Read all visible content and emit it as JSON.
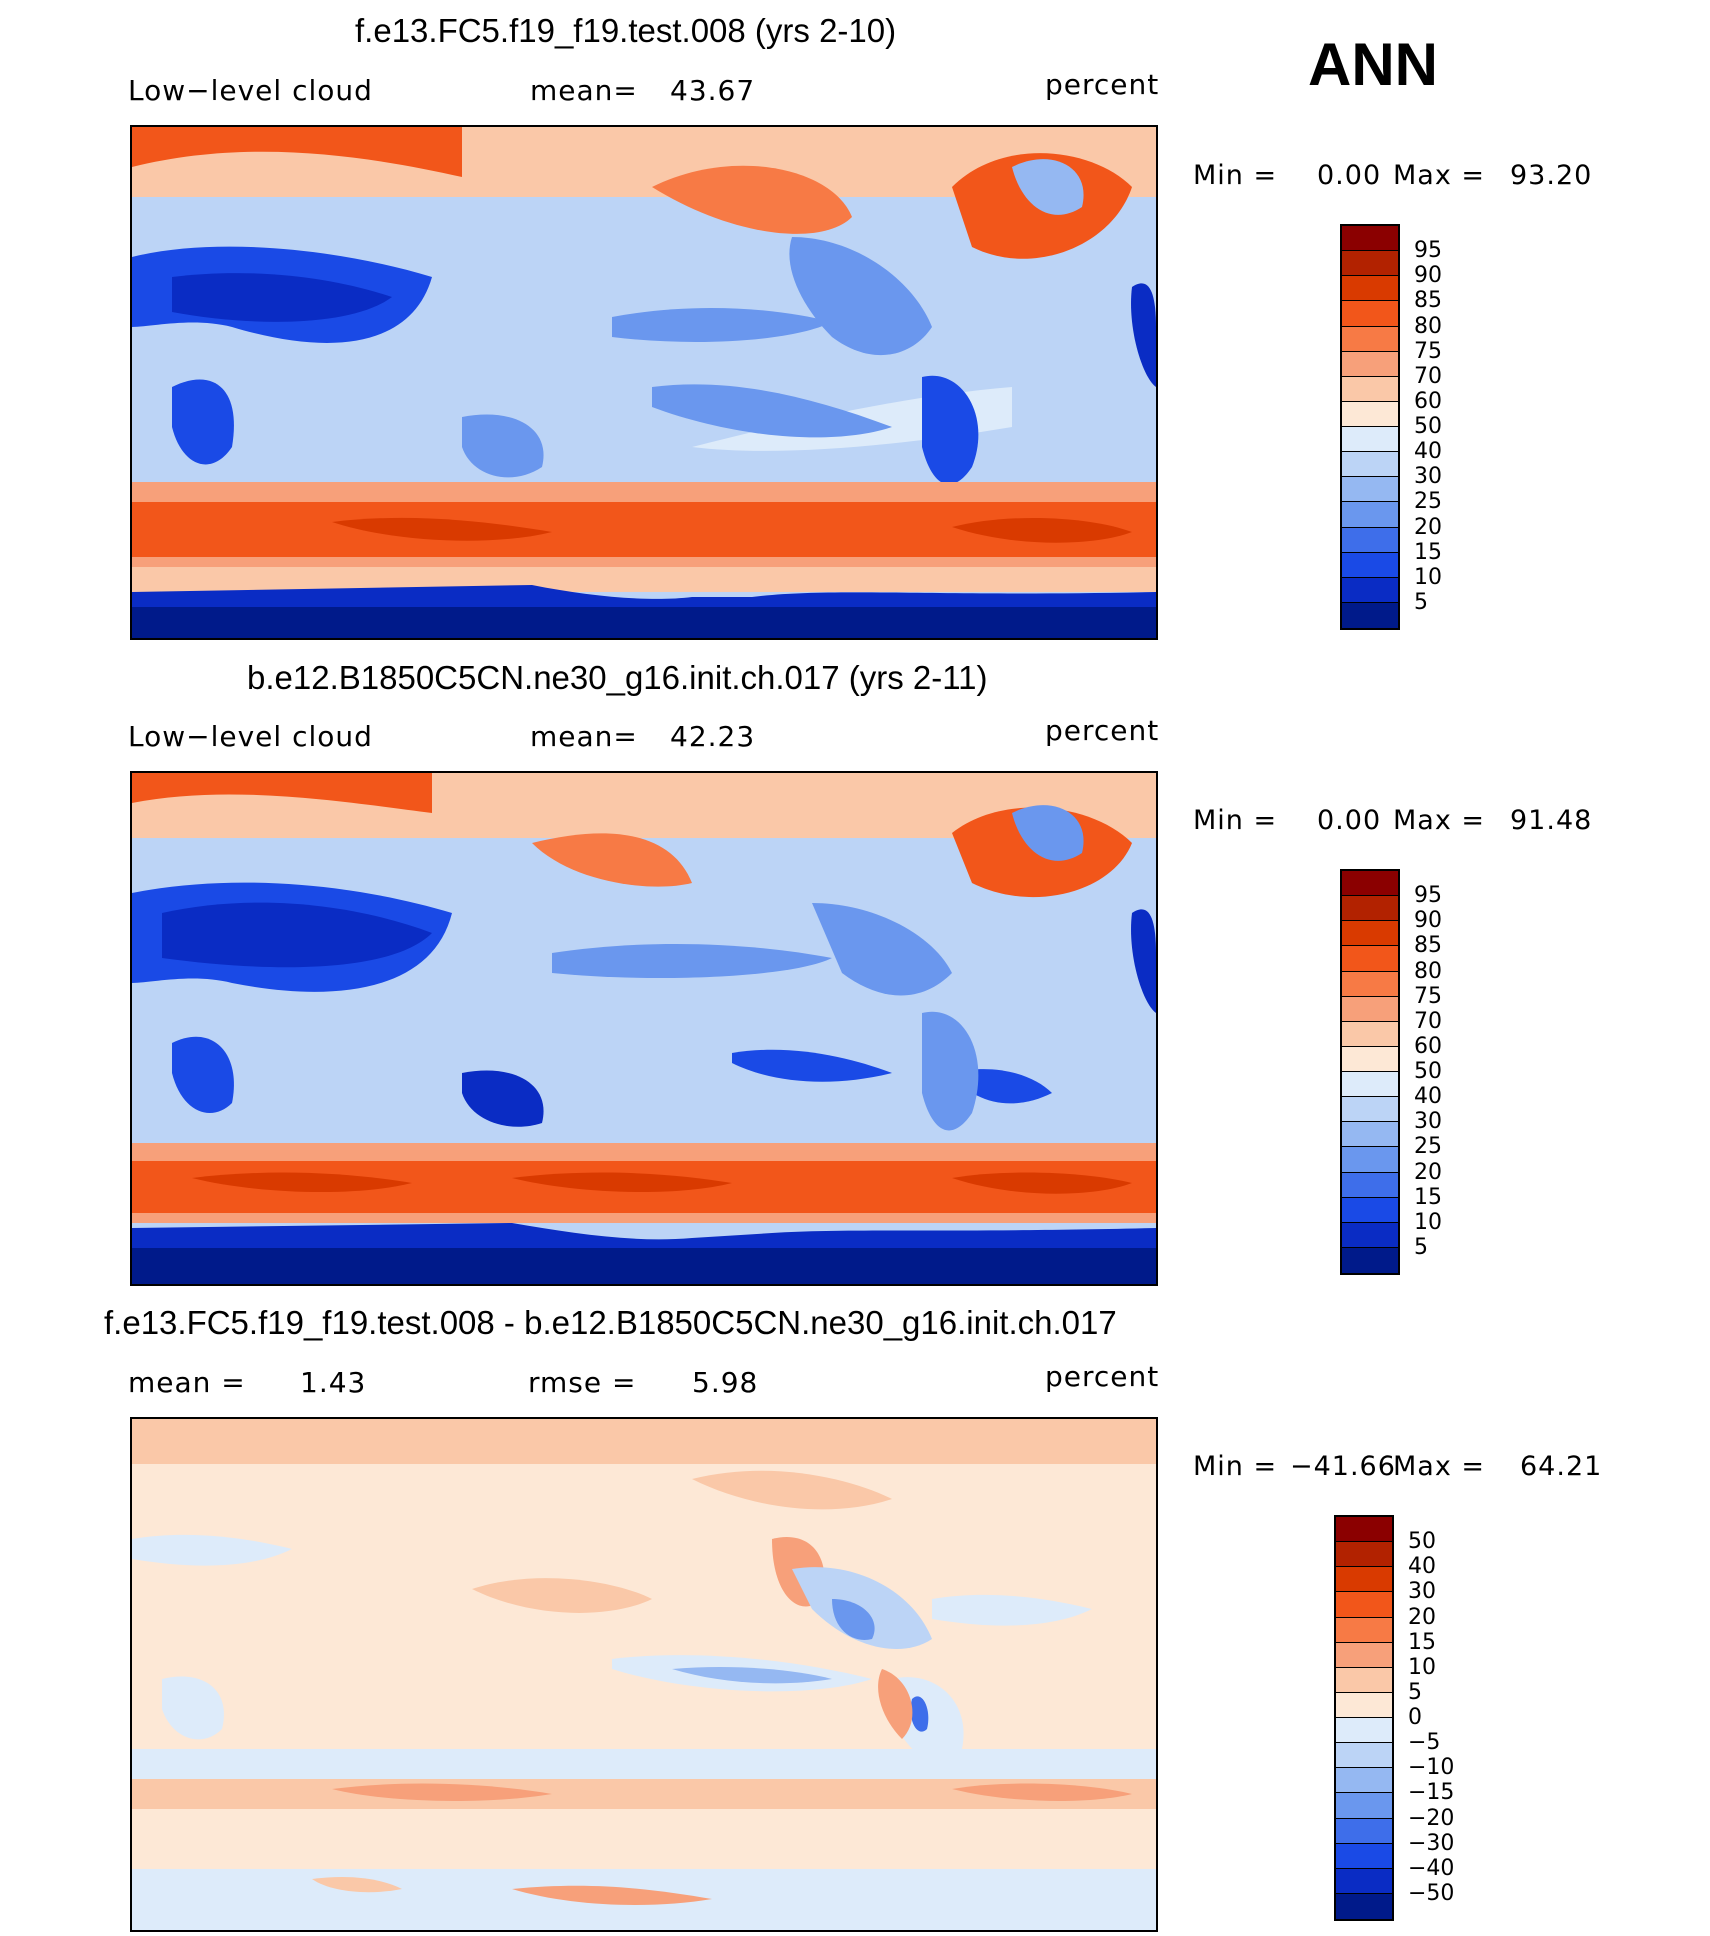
{
  "season": "ANN",
  "panels": [
    {
      "title": "f.e13.FC5.f19_f19.test.008 (yrs 2-10)",
      "left_label": "Low−level  cloud",
      "center_label": "mean=",
      "center_value": "43.67",
      "right_label": "percent",
      "min_label": "Min  =",
      "min_value": "0.00",
      "max_label": "Max  =",
      "max_value": "93.20",
      "colorbar": {
        "colors": [
          "#8B0000",
          "#B22200",
          "#D93A00",
          "#F2561A",
          "#F77A45",
          "#F7A07A",
          "#FAC8A8",
          "#FDE8D6",
          "#DDEBFA",
          "#BCD4F6",
          "#95B8F2",
          "#6A97EE",
          "#3E6EEA",
          "#1A4AE6",
          "#0A2CC4",
          "#001A8A"
        ],
        "labels": [
          "95",
          "90",
          "85",
          "80",
          "75",
          "70",
          "60",
          "50",
          "40",
          "30",
          "25",
          "20",
          "15",
          "10",
          "5"
        ]
      }
    },
    {
      "title": "b.e12.B1850C5CN.ne30_g16.init.ch.017 (yrs 2-11)",
      "left_label": "Low−level  cloud",
      "center_label": "mean=",
      "center_value": "42.23",
      "right_label": "percent",
      "min_label": "Min  =",
      "min_value": "0.00",
      "max_label": "Max  =",
      "max_value": "91.48",
      "colorbar": {
        "colors": [
          "#8B0000",
          "#B22200",
          "#D93A00",
          "#F2561A",
          "#F77A45",
          "#F7A07A",
          "#FAC8A8",
          "#FDE8D6",
          "#DDEBFA",
          "#BCD4F6",
          "#95B8F2",
          "#6A97EE",
          "#3E6EEA",
          "#1A4AE6",
          "#0A2CC4",
          "#001A8A"
        ],
        "labels": [
          "95",
          "90",
          "85",
          "80",
          "75",
          "70",
          "60",
          "50",
          "40",
          "30",
          "25",
          "20",
          "15",
          "10",
          "5"
        ]
      }
    },
    {
      "title": "f.e13.FC5.f19_f19.test.008 - b.e12.B1850C5CN.ne30_g16.init.ch.017",
      "left_label": "mean  =",
      "left_value": "1.43",
      "center_label": "rmse  =",
      "center_value": "5.98",
      "right_label": "percent",
      "min_label": "Min  =",
      "min_value": "−41.66",
      "max_label": "Max  =",
      "max_value": "64.21",
      "colorbar": {
        "colors": [
          "#8B0000",
          "#B22200",
          "#D93A00",
          "#F2561A",
          "#F77A45",
          "#F7A07A",
          "#FAC8A8",
          "#FDE8D6",
          "#DDEBFA",
          "#BCD4F6",
          "#95B8F2",
          "#6A97EE",
          "#3E6EEA",
          "#1A4AE6",
          "#0A2CC4",
          "#001A8A"
        ],
        "labels": [
          "50",
          "40",
          "30",
          "20",
          "15",
          "10",
          "5",
          "0",
          "−5",
          "−10",
          "−15",
          "−20",
          "−30",
          "−40",
          "−50"
        ]
      }
    }
  ],
  "chart_data": [
    {
      "type": "heatmap",
      "title": "f.e13.FC5.f19_f19.test.008 (yrs 2-10)",
      "variable": "Low-level cloud",
      "units": "percent",
      "mean": 43.67,
      "min": 0.0,
      "max": 93.2,
      "levels": [
        5,
        10,
        15,
        20,
        25,
        30,
        40,
        50,
        60,
        70,
        75,
        80,
        85,
        90,
        95
      ]
    },
    {
      "type": "heatmap",
      "title": "b.e12.B1850C5CN.ne30_g16.init.ch.017 (yrs 2-11)",
      "variable": "Low-level cloud",
      "units": "percent",
      "mean": 42.23,
      "min": 0.0,
      "max": 91.48,
      "levels": [
        5,
        10,
        15,
        20,
        25,
        30,
        40,
        50,
        60,
        70,
        75,
        80,
        85,
        90,
        95
      ]
    },
    {
      "type": "heatmap",
      "title": "f.e13.FC5.f19_f19.test.008 - b.e12.B1850C5CN.ne30_g16.init.ch.017",
      "units": "percent",
      "mean": 1.43,
      "rmse": 5.98,
      "min": -41.66,
      "max": 64.21,
      "levels": [
        -50,
        -40,
        -30,
        -20,
        -15,
        -10,
        -5,
        0,
        5,
        10,
        15,
        20,
        30,
        40,
        50
      ]
    }
  ]
}
